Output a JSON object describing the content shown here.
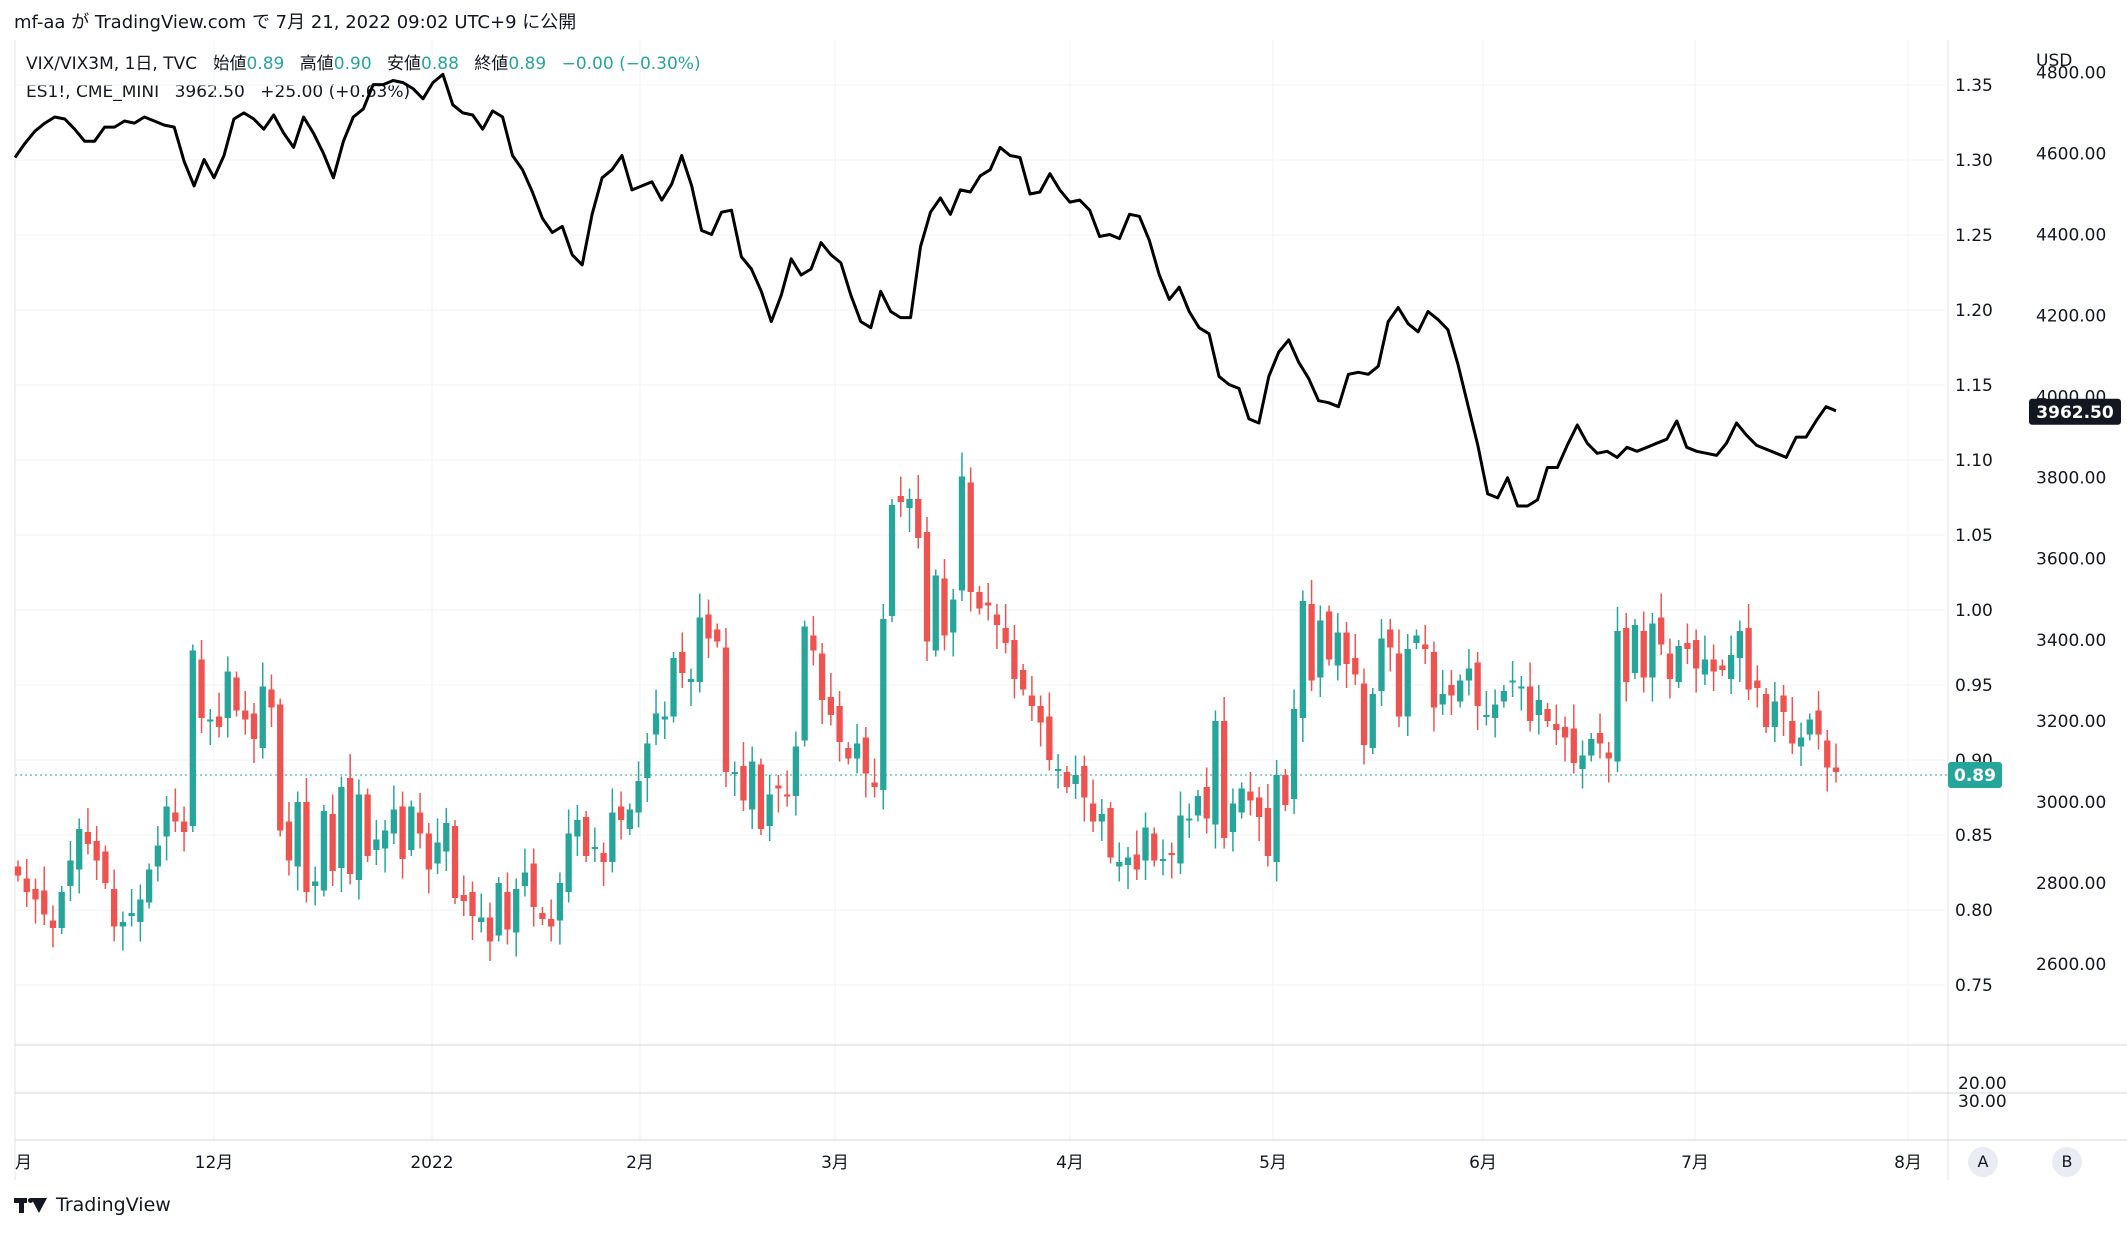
{
  "header": {
    "author": "mf-aa",
    "via": "が",
    "site": "TradingView.com",
    "on": "で",
    "date": "7月 21, 2022 09:02 UTC+9",
    "published": "に公開"
  },
  "legend": {
    "symbol1": "VIX/VIX3M, 1日, TVC",
    "open_label": "始値",
    "open_value": "0.89",
    "high_label": "高値",
    "high_value": "0.90",
    "low_label": "安値",
    "low_value": "0.88",
    "close_label": "終値",
    "close_value": "0.89",
    "change": "−0.00 (−0.30%)",
    "symbol2": "ES1!, CME_MINI",
    "es_value": "3962.50",
    "es_change": "+25.00 (+0.63%)"
  },
  "colors": {
    "up": "#26a69a",
    "down": "#ef5350",
    "line": "#000000",
    "grid": "#f0f3fa",
    "badge_dark": "#131722",
    "badge_green": "#26a69a"
  },
  "footer": {
    "brand": "TradingView",
    "logo_icon": "tradingview-logo-icon",
    "btn_a": "A",
    "btn_b": "B"
  },
  "chart_data": {
    "type": "candlestick+line",
    "currency_label": "USD",
    "x_ticks": [
      "月",
      "12月",
      "2022",
      "2月",
      "3月",
      "4月",
      "5月",
      "6月",
      "7月",
      "8月"
    ],
    "left_axis": {
      "ticks": [
        "1.35",
        "1.30",
        "1.25",
        "1.20",
        "1.15",
        "1.10",
        "1.05",
        "1.00",
        "0.95",
        "0.90",
        "0.85",
        "0.80",
        "0.75"
      ],
      "range": [
        0.71,
        1.38
      ]
    },
    "right_axis": {
      "ticks": [
        "4800.00",
        "4600.00",
        "4400.00",
        "4200.00",
        "4000.00",
        "3800.00",
        "3600.00",
        "3400.00",
        "3200.00",
        "3000.00",
        "2800.00",
        "2600.00"
      ],
      "range": [
        2400,
        4880
      ]
    },
    "lower_pane_ticks": [
      "20.00",
      "30.00"
    ],
    "last_vix_badge": "0.89",
    "last_es_badge": "3962.50",
    "vix_ratio_candles": [
      [
        0.823,
        0.812,
        0.807,
        0.797,
        0.788,
        0.812,
        0.833,
        0.854,
        0.844,
        0.833,
        0.818,
        0.789,
        0.792,
        0.798,
        0.807,
        0.827,
        0.843,
        0.869,
        0.859,
        0.852,
        0.973,
        0.928,
        0.927,
        0.922,
        0.959,
        0.933,
        0.927,
        0.914,
        0.949,
        0.935,
        0.853,
        0.833,
        0.872,
        0.812,
        0.819,
        0.866,
        0.826,
        0.882,
        0.824,
        0.877,
        0.836,
        0.847,
        0.853,
        0.867,
        0.834,
        0.869,
        0.851,
        0.827,
        0.845,
        0.858,
        0.808,
        0.806,
        0.796,
        0.795,
        0.779,
        0.818,
        0.787,
        0.814,
        0.825,
        0.802,
        0.794,
        0.789,
        0.818,
        0.851,
        0.86,
        0.836,
        0.842,
        0.832,
        0.865,
        0.86,
        0.867,
        0.886,
        0.911,
        0.931,
        0.929,
        0.968,
        0.958,
        0.954,
        0.995,
        0.981,
        0.979,
        0.892,
        0.892,
        0.873,
        0.899,
        0.854,
        0.877,
        0.881,
        0.876,
        0.909,
        0.989,
        0.973,
        0.94,
        0.93,
        0.912,
        0.901,
        0.911,
        0.891,
        0.882,
        0.994,
        1.07,
        1.072,
        1.074,
        1.048,
        0.979,
        1.023,
        0.983,
        1.007,
        1.089,
        1.012,
        1.001,
        1.003,
        0.99,
        0.978,
        0.954,
        0.947,
        0.936,
        0.925,
        0.9,
        0.894,
        0.882,
        0.89,
        0.875,
        0.859,
        0.864,
        0.835,
        0.832,
        0.835,
        0.827,
        0.855,
        0.833,
        0.834,
        0.837,
        0.863,
        0.861,
        0.876,
        0.861,
        0.926,
        0.848,
        0.871,
        0.881,
        0.873,
        0.862,
        0.836,
        0.89,
        0.87,
        0.934,
        1.006,
        0.953,
        0.993,
        0.967,
        0.985,
        0.964,
        0.957,
        0.91,
        0.944,
        0.981,
        0.975,
        0.929,
        0.974,
        0.983,
        0.974,
        0.935,
        0.944,
        0.943,
        0.953,
        0.961,
        0.936,
        0.93,
        0.937,
        0.946,
        0.953,
        0.949,
        0.926,
        0.94,
        0.926,
        0.92,
        0.915,
        0.898,
        0.903,
        0.914,
        0.911,
        0.901,
        0.986,
        0.952,
        0.99,
        0.955,
        0.991,
        0.977,
        0.954,
        0.976,
        0.974,
        0.961,
        0.967,
        0.959,
        0.96,
        0.97,
        0.986,
        0.947,
        0.948,
        0.922,
        0.939,
        0.932,
        0.911,
        0.915,
        0.927,
        0.917,
        0.895,
        0.892
      ]
    ],
    "es_line": [
      4590,
      4625,
      4655,
      4675,
      4690,
      4685,
      4660,
      4630,
      4630,
      4665,
      4665,
      4680,
      4675,
      4690,
      4680,
      4670,
      4665,
      4580,
      4520,
      4585,
      4540,
      4595,
      4685,
      4700,
      4685,
      4660,
      4695,
      4650,
      4615,
      4690,
      4650,
      4600,
      4540,
      4630,
      4690,
      4710,
      4770,
      4770,
      4780,
      4775,
      4760,
      4735,
      4775,
      4795,
      4720,
      4700,
      4695,
      4660,
      4705,
      4690,
      4595,
      4560,
      4505,
      4440,
      4405,
      4420,
      4350,
      4325,
      4450,
      4540,
      4560,
      4595,
      4510,
      4520,
      4530,
      4485,
      4525,
      4595,
      4520,
      4410,
      4400,
      4455,
      4460,
      4345,
      4315,
      4260,
      4185,
      4250,
      4340,
      4300,
      4315,
      4380,
      4350,
      4330,
      4250,
      4185,
      4170,
      4260,
      4210,
      4195,
      4195,
      4370,
      4455,
      4490,
      4450,
      4510,
      4505,
      4545,
      4560,
      4615,
      4595,
      4590,
      4500,
      4505,
      4550,
      4510,
      4480,
      4485,
      4460,
      4395,
      4400,
      4390,
      4450,
      4445,
      4385,
      4300,
      4240,
      4270,
      4210,
      4170,
      4155,
      4050,
      4030,
      4020,
      3945,
      3935,
      4050,
      4110,
      4140,
      4085,
      4045,
      3990,
      3985,
      3975,
      4055,
      4060,
      4055,
      4075,
      4185,
      4220,
      4180,
      4160,
      4210,
      4190,
      4165,
      4080,
      3980,
      3880,
      3760,
      3750,
      3800,
      3730,
      3730,
      3745,
      3825,
      3825,
      3880,
      3930,
      3885,
      3860,
      3865,
      3850,
      3875,
      3865,
      3875,
      3885,
      3895,
      3940,
      3875,
      3865,
      3860,
      3855,
      3885,
      3935,
      3905,
      3880,
      3870,
      3860,
      3850,
      3900,
      3900,
      3940,
      3975,
      3965
    ]
  }
}
